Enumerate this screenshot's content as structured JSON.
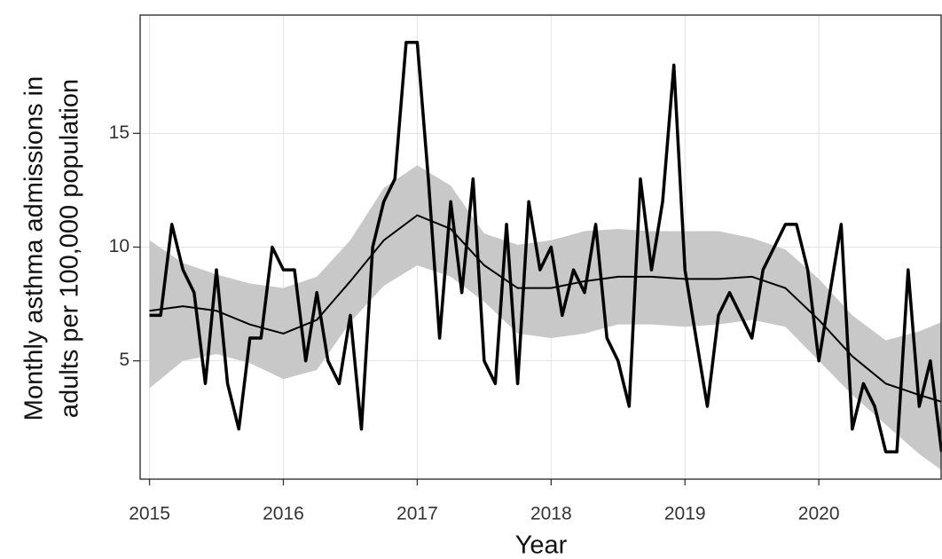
{
  "chart_data": {
    "type": "line",
    "xlabel": "Year",
    "ylabel": [
      "Monthly asthma admissions in",
      "adults per 100,000 population"
    ],
    "xlim": [
      2014.93,
      2020.92
    ],
    "ylim": [
      -0.2,
      20.2
    ],
    "xticks": [
      2015,
      2016,
      2017,
      2018,
      2019,
      2020
    ],
    "yticks": [
      5,
      10,
      15
    ],
    "grid": true,
    "x": [
      2015,
      2015.083,
      2015.167,
      2015.25,
      2015.333,
      2015.417,
      2015.5,
      2015.583,
      2015.667,
      2015.75,
      2015.833,
      2015.917,
      2016,
      2016.083,
      2016.167,
      2016.25,
      2016.333,
      2016.417,
      2016.5,
      2016.583,
      2016.667,
      2016.75,
      2016.833,
      2016.917,
      2017,
      2017.083,
      2017.167,
      2017.25,
      2017.333,
      2017.417,
      2017.5,
      2017.583,
      2017.667,
      2017.75,
      2017.833,
      2017.917,
      2018,
      2018.083,
      2018.167,
      2018.25,
      2018.333,
      2018.417,
      2018.5,
      2018.583,
      2018.667,
      2018.75,
      2018.833,
      2018.917,
      2019,
      2019.083,
      2019.167,
      2019.25,
      2019.333,
      2019.417,
      2019.5,
      2019.583,
      2019.667,
      2019.75,
      2019.833,
      2019.917,
      2020,
      2020.083,
      2020.167,
      2020.25,
      2020.333,
      2020.417,
      2020.5,
      2020.583,
      2020.667,
      2020.75,
      2020.833,
      2020.917
    ],
    "series": [
      {
        "color": "#000000",
        "values": [
          7,
          7,
          11,
          9,
          8,
          4,
          9,
          4,
          2,
          6,
          6,
          10,
          9,
          9,
          5,
          8,
          5,
          4,
          7,
          2,
          10,
          12,
          13,
          19,
          19,
          13,
          6,
          12,
          8,
          13,
          5,
          4,
          11,
          4,
          12,
          9,
          10,
          7,
          9,
          8,
          11,
          6,
          5,
          3,
          13,
          9,
          12,
          18,
          9,
          6,
          3,
          7,
          8,
          7,
          6,
          9,
          10,
          11,
          11,
          9,
          5,
          8,
          11,
          2,
          4,
          3,
          1,
          1,
          9,
          3,
          5,
          1
        ]
      }
    ],
    "band": {
      "color": "#c8c8c8",
      "line_color": "#000000",
      "x": [
        2015,
        2015.25,
        2015.5,
        2015.75,
        2016,
        2016.25,
        2016.5,
        2016.75,
        2017,
        2017.25,
        2017.5,
        2017.75,
        2018,
        2018.25,
        2018.5,
        2018.75,
        2019,
        2019.25,
        2019.5,
        2019.75,
        2020,
        2020.25,
        2020.5,
        2020.75,
        2020.917
      ],
      "fit": [
        7.2,
        7.4,
        7.2,
        6.6,
        6.2,
        6.8,
        8.5,
        10.3,
        11.4,
        10.8,
        9.2,
        8.2,
        8.2,
        8.5,
        8.7,
        8.7,
        8.6,
        8.6,
        8.7,
        8.2,
        6.8,
        5.2,
        4.0,
        3.5,
        3.2
      ],
      "upper": [
        10.3,
        9.3,
        8.8,
        8.4,
        8.2,
        8.7,
        10.3,
        12.6,
        13.6,
        12.7,
        10.6,
        10.1,
        10.3,
        10.7,
        10.8,
        10.7,
        10.7,
        10.7,
        10.4,
        9.9,
        8.6,
        7.0,
        5.9,
        6.3,
        6.7
      ],
      "lower": [
        3.8,
        5.0,
        5.3,
        4.9,
        4.2,
        4.6,
        6.7,
        8.3,
        9.2,
        8.7,
        7.6,
        6.2,
        6.0,
        6.2,
        6.6,
        6.6,
        6.5,
        6.6,
        6.8,
        6.5,
        5.0,
        3.5,
        2.2,
        0.9,
        0.2
      ]
    }
  }
}
